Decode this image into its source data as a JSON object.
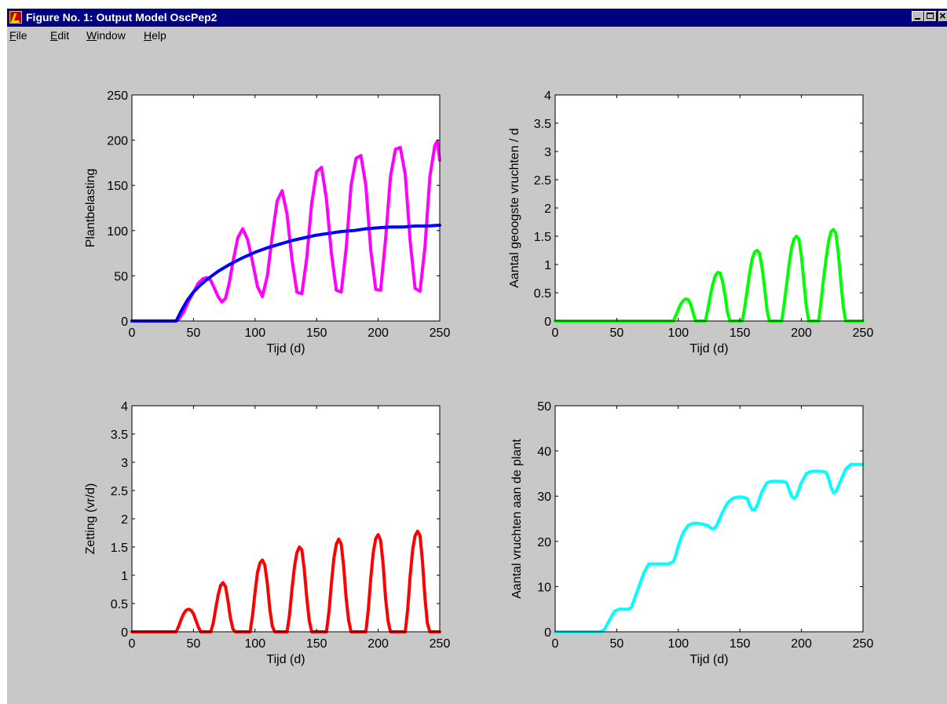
{
  "window": {
    "title": "Figure No. 1: Output Model OscPep2",
    "controls": [
      "minimize",
      "maximize",
      "close"
    ],
    "icon": "matlab-figure-icon"
  },
  "menu": [
    {
      "mnemonic": "F",
      "rest": "ile"
    },
    {
      "mnemonic": "E",
      "rest": "dit"
    },
    {
      "mnemonic": "W",
      "rest": "indow"
    },
    {
      "mnemonic": "H",
      "rest": "elp"
    }
  ],
  "chart_data": [
    {
      "type": "line",
      "title": "",
      "xlabel": "Tijd (d)",
      "ylabel": "Plantbelasting",
      "xlim": [
        0,
        250
      ],
      "ylim": [
        0,
        250
      ],
      "xticks": [
        "0",
        "50",
        "100",
        "150",
        "200",
        "250"
      ],
      "yticks": [
        "0",
        "50",
        "100",
        "150",
        "200",
        "250"
      ],
      "grid": false,
      "series": [
        {
          "color": "#ff00ff",
          "x": [
            0,
            35,
            38,
            42,
            46,
            50,
            54,
            58,
            61,
            64,
            67,
            70,
            73,
            76,
            79,
            82,
            86,
            90,
            94,
            98,
            102,
            106,
            110,
            114,
            118,
            122,
            126,
            130,
            134,
            138,
            142,
            146,
            150,
            154,
            158,
            162,
            166,
            170,
            174,
            178,
            182,
            186,
            190,
            194,
            198,
            202,
            206,
            210,
            214,
            218,
            222,
            226,
            230,
            234,
            238,
            242,
            246,
            248,
            250
          ],
          "y": [
            0,
            0,
            2,
            10,
            22,
            32,
            42,
            47,
            48,
            45,
            36,
            27,
            21,
            25,
            42,
            65,
            92,
            102,
            90,
            65,
            38,
            27,
            50,
            95,
            133,
            144,
            118,
            68,
            32,
            30,
            70,
            130,
            165,
            170,
            135,
            75,
            34,
            32,
            80,
            150,
            180,
            183,
            150,
            78,
            35,
            34,
            90,
            160,
            190,
            192,
            162,
            88,
            36,
            33,
            82,
            160,
            194,
            199,
            178
          ]
        },
        {
          "color": "#0000ff",
          "x": [
            0,
            36,
            40,
            45,
            50,
            55,
            60,
            70,
            80,
            90,
            100,
            110,
            120,
            130,
            140,
            150,
            160,
            170,
            180,
            190,
            200,
            210,
            220,
            230,
            240,
            250
          ],
          "y": [
            0,
            0,
            11,
            23,
            32,
            39,
            45,
            55,
            63,
            70,
            76,
            81,
            85,
            89,
            92,
            95,
            97,
            99,
            100,
            102,
            103,
            104,
            104,
            105,
            105,
            106
          ]
        }
      ]
    },
    {
      "type": "line",
      "title": "",
      "xlabel": "Tijd (d)",
      "ylabel": "Aantal geoogste vruchten / d",
      "xlim": [
        0,
        250
      ],
      "ylim": [
        0,
        4
      ],
      "xticks": [
        "0",
        "50",
        "100",
        "150",
        "200",
        "250"
      ],
      "yticks": [
        "0",
        "0.5",
        "1",
        "1.5",
        "2",
        "2.5",
        "3",
        "3.5",
        "4"
      ],
      "grid": false,
      "series": [
        {
          "color": "#00ff00",
          "x": [
            0,
            96,
            98,
            100,
            102,
            104,
            106,
            108,
            110,
            112,
            114,
            122,
            124,
            126,
            128,
            130,
            132,
            134,
            136,
            138,
            140,
            142,
            152,
            154,
            156,
            158,
            160,
            162,
            164,
            166,
            168,
            170,
            172,
            174,
            184,
            186,
            188,
            190,
            192,
            194,
            196,
            198,
            200,
            202,
            204,
            206,
            214,
            216,
            218,
            220,
            222,
            224,
            226,
            228,
            230,
            232,
            234,
            236,
            250
          ],
          "y": [
            0,
            0,
            0.1,
            0.2,
            0.3,
            0.36,
            0.39,
            0.38,
            0.3,
            0.15,
            0,
            0,
            0.2,
            0.45,
            0.65,
            0.8,
            0.86,
            0.85,
            0.7,
            0.45,
            0.15,
            0,
            0,
            0.25,
            0.55,
            0.85,
            1.1,
            1.22,
            1.25,
            1.2,
            0.95,
            0.6,
            0.2,
            0,
            0,
            0.3,
            0.65,
            1.0,
            1.3,
            1.45,
            1.5,
            1.45,
            1.15,
            0.7,
            0.25,
            0,
            0,
            0.35,
            0.75,
            1.1,
            1.4,
            1.58,
            1.62,
            1.55,
            1.2,
            0.7,
            0.25,
            0,
            0
          ]
        }
      ]
    },
    {
      "type": "line",
      "title": "",
      "xlabel": "Tijd (d)",
      "ylabel": "Zetting (vr/d)",
      "xlim": [
        0,
        250
      ],
      "ylim": [
        0,
        4
      ],
      "xticks": [
        "0",
        "50",
        "100",
        "150",
        "200",
        "250"
      ],
      "yticks": [
        "0",
        "0.5",
        "1",
        "1.5",
        "2",
        "2.5",
        "3",
        "3.5",
        "4"
      ],
      "grid": false,
      "series": [
        {
          "color": "#ff0000",
          "x": [
            0,
            36,
            38,
            40,
            42,
            44,
            46,
            48,
            50,
            52,
            54,
            56,
            64,
            66,
            68,
            70,
            72,
            74,
            76,
            78,
            80,
            82,
            84,
            96,
            98,
            100,
            102,
            104,
            106,
            108,
            110,
            112,
            114,
            116,
            126,
            128,
            130,
            132,
            134,
            136,
            138,
            140,
            142,
            144,
            146,
            158,
            160,
            162,
            164,
            166,
            168,
            170,
            172,
            174,
            176,
            178,
            190,
            192,
            194,
            196,
            198,
            200,
            202,
            204,
            206,
            208,
            210,
            222,
            224,
            226,
            228,
            230,
            232,
            234,
            236,
            238,
            240,
            242,
            250
          ],
          "y": [
            0,
            0,
            0.1,
            0.22,
            0.32,
            0.38,
            0.4,
            0.38,
            0.32,
            0.2,
            0.08,
            0,
            0,
            0.15,
            0.4,
            0.65,
            0.82,
            0.87,
            0.8,
            0.55,
            0.25,
            0.05,
            0,
            0,
            0.3,
            0.7,
            1.05,
            1.22,
            1.27,
            1.18,
            0.85,
            0.4,
            0.1,
            0,
            0,
            0.3,
            0.75,
            1.15,
            1.4,
            1.5,
            1.45,
            1.1,
            0.6,
            0.2,
            0,
            0,
            0.35,
            0.85,
            1.3,
            1.55,
            1.64,
            1.55,
            1.15,
            0.6,
            0.2,
            0,
            0,
            0.4,
            0.95,
            1.4,
            1.65,
            1.72,
            1.62,
            1.2,
            0.6,
            0.2,
            0,
            0,
            0.4,
            1.0,
            1.45,
            1.7,
            1.78,
            1.7,
            1.25,
            0.6,
            0.15,
            0,
            0
          ]
        }
      ]
    },
    {
      "type": "line",
      "title": "",
      "xlabel": "Tijd (d)",
      "ylabel": "Aantal vruchten aan de plant",
      "xlim": [
        0,
        250
      ],
      "ylim": [
        0,
        50
      ],
      "xticks": [
        "0",
        "50",
        "100",
        "150",
        "200",
        "250"
      ],
      "yticks": [
        "0",
        "10",
        "20",
        "30",
        "40",
        "50"
      ],
      "grid": false,
      "series": [
        {
          "color": "#00ffff",
          "x": [
            0,
            37,
            40,
            44,
            48,
            52,
            56,
            60,
            62,
            64,
            68,
            72,
            76,
            80,
            84,
            88,
            92,
            96,
            98,
            100,
            104,
            108,
            112,
            116,
            120,
            124,
            126,
            128,
            130,
            132,
            136,
            140,
            144,
            148,
            152,
            156,
            158,
            160,
            162,
            164,
            168,
            172,
            176,
            180,
            184,
            188,
            190,
            192,
            194,
            196,
            200,
            204,
            208,
            212,
            216,
            220,
            222,
            224,
            226,
            228,
            232,
            236,
            240,
            244,
            250
          ],
          "y": [
            0,
            0,
            0.5,
            2.5,
            4.5,
            5,
            5,
            5,
            5.5,
            7,
            10,
            13,
            15,
            15,
            15,
            15,
            15,
            15.5,
            17,
            19,
            22,
            23.5,
            24,
            24,
            23.8,
            23.5,
            23,
            22.8,
            23,
            24,
            26.5,
            28.5,
            29.5,
            29.8,
            29.8,
            29.5,
            28,
            27,
            27,
            28,
            31,
            33,
            33.3,
            33.3,
            33.3,
            33,
            31.5,
            30,
            29.5,
            30,
            33,
            35,
            35.5,
            35.5,
            35.5,
            35.3,
            34,
            32,
            30.8,
            31,
            33.5,
            36,
            37,
            37,
            37
          ]
        }
      ]
    }
  ]
}
